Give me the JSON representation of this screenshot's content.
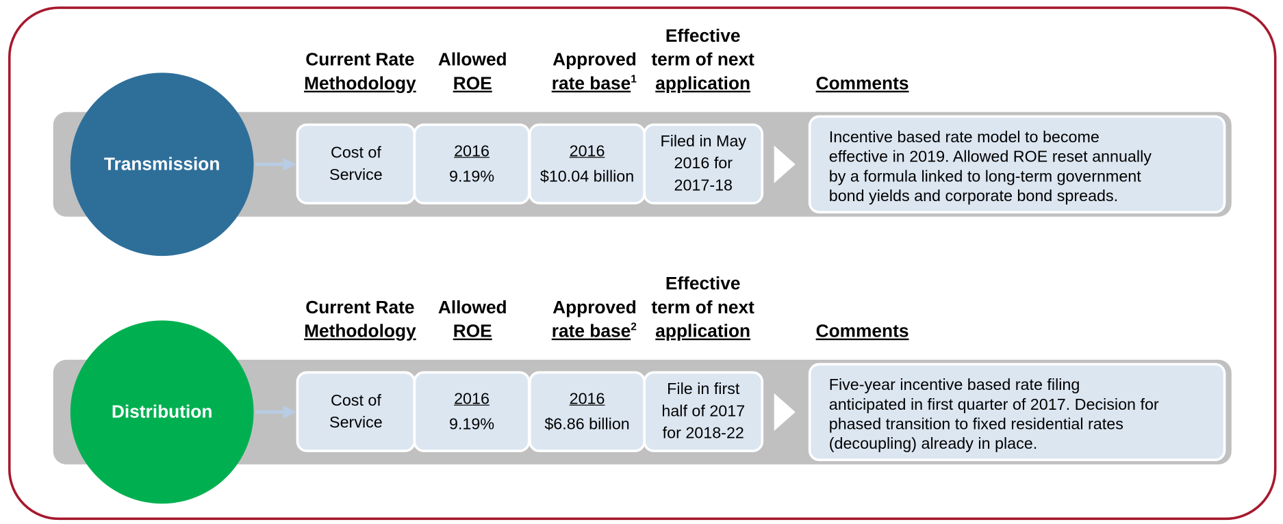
{
  "sections": [
    {
      "label": "Transmission",
      "color": "#2e6f9a",
      "headers": {
        "methodology": [
          "Current Rate",
          "Methodology"
        ],
        "roe": [
          "Allowed",
          "ROE"
        ],
        "rate_base": [
          "Approved",
          "rate base"
        ],
        "rate_base_note": "1",
        "term": [
          "Effective",
          "term of next",
          "application"
        ],
        "comments": [
          "Comments"
        ]
      },
      "methodology": [
        "Cost of",
        "Service"
      ],
      "roe_year": "2016",
      "roe": "9.19%",
      "rate_base_year": "2016",
      "rate_base": "$10.04 billion",
      "term": [
        "Filed in May",
        "2016 for",
        "2017-18"
      ],
      "comments": [
        "Incentive based rate model to become",
        "effective in 2019. Allowed ROE reset annually",
        "by a formula linked to long-term government",
        "bond yields and corporate bond spreads."
      ]
    },
    {
      "label": "Distribution",
      "color": "#00b050",
      "headers": {
        "methodology": [
          "Current Rate",
          "Methodology"
        ],
        "roe": [
          "Allowed",
          "ROE"
        ],
        "rate_base": [
          "Approved",
          "rate base"
        ],
        "rate_base_note": "2",
        "term": [
          "Effective",
          "term of next",
          "application"
        ],
        "comments": [
          "Comments"
        ]
      },
      "methodology": [
        "Cost of",
        "Service"
      ],
      "roe_year": "2016",
      "roe": "9.19%",
      "rate_base_year": "2016",
      "rate_base": "$6.86 billion",
      "term": [
        "File in first",
        "half of 2017",
        "for 2018-22"
      ],
      "comments": [
        "Five-year incentive based rate filing",
        "anticipated in first quarter of 2017. Decision for",
        "phased transition to fixed residential rates",
        "(decoupling) already in place."
      ]
    }
  ]
}
